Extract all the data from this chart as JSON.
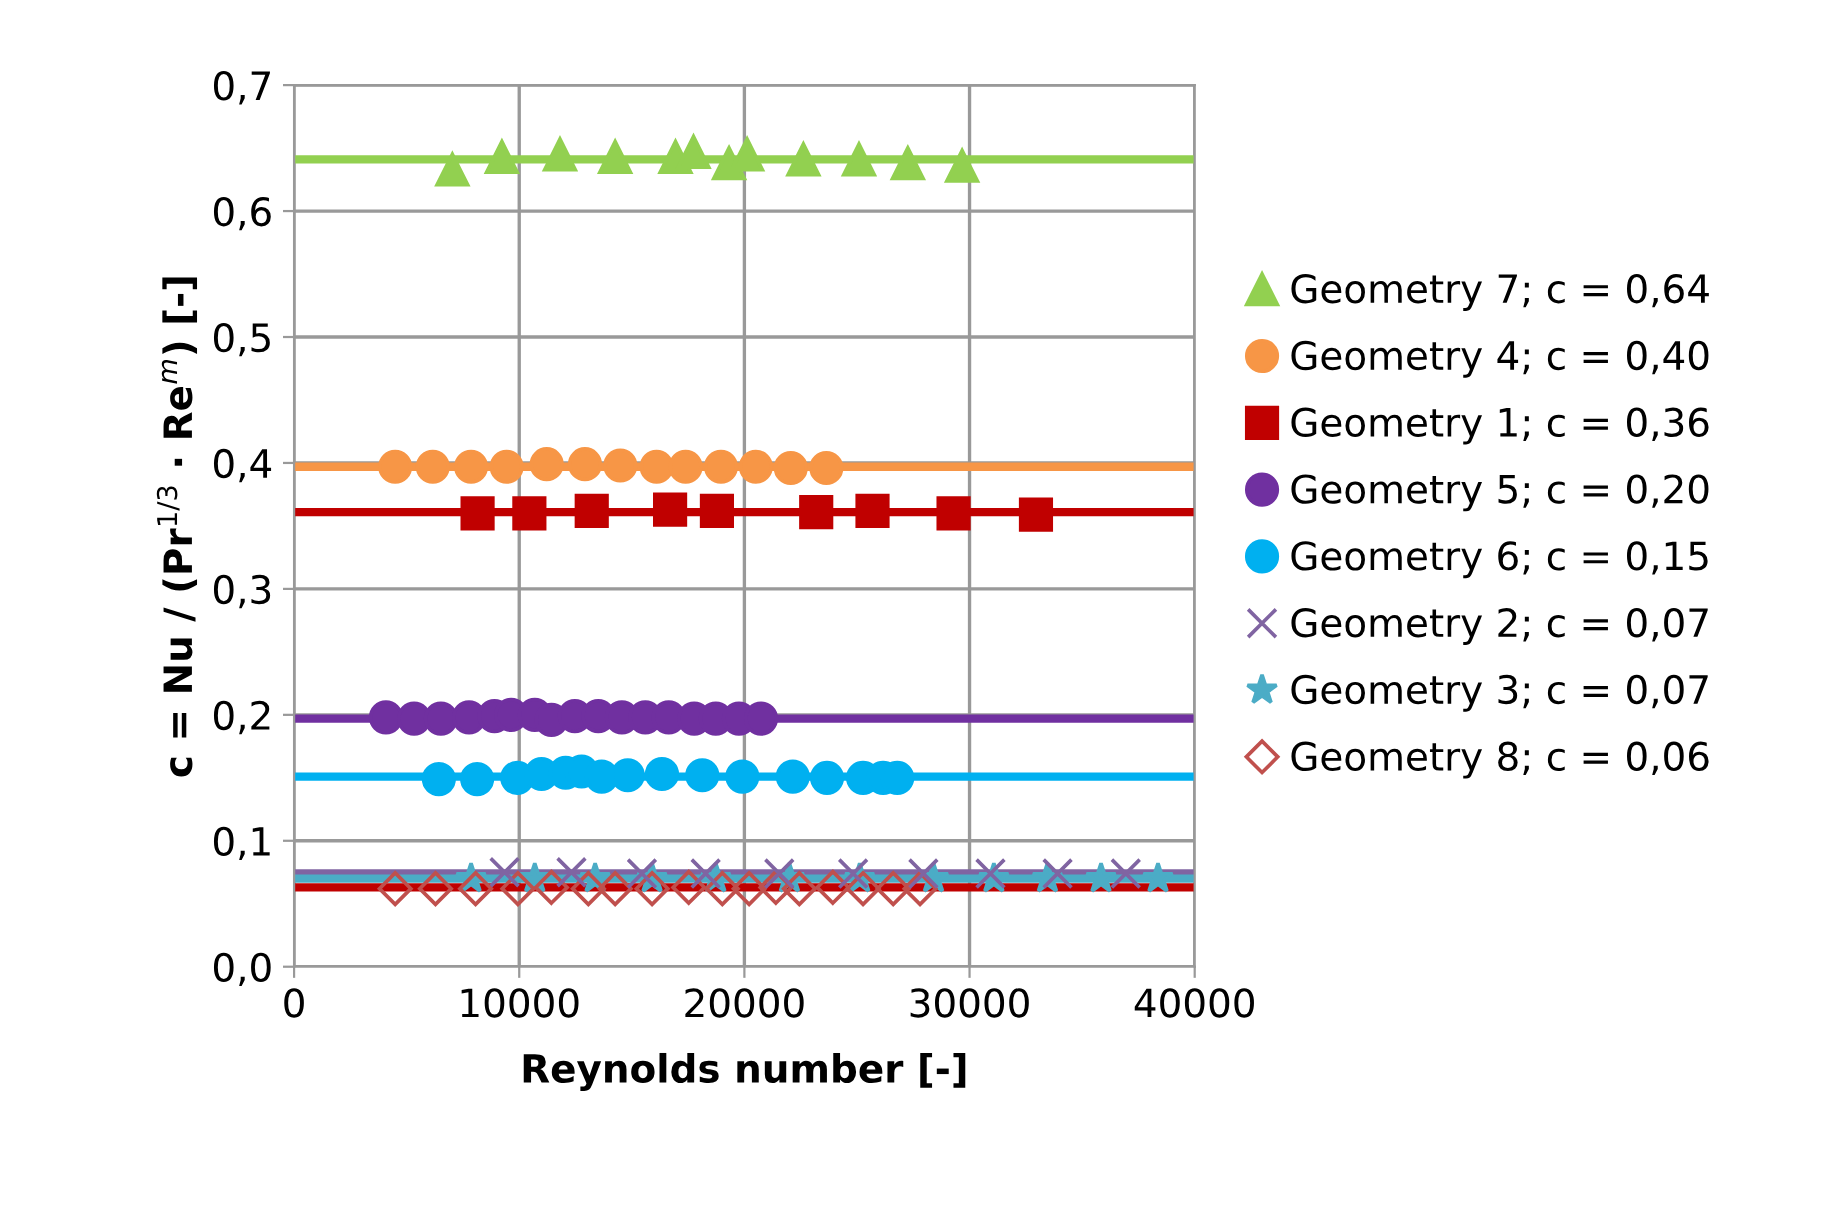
{
  "chart_data": {
    "type": "scatter",
    "xlabel": "Reynolds number [-]",
    "ylabel": "c = Nu / (Pr$^{1/3}$ · Re$^{m}$) [-]",
    "xlim": [
      0,
      40000
    ],
    "xticks": [
      0,
      10000,
      20000,
      30000,
      40000
    ],
    "ylim": [
      0,
      0.7
    ],
    "yticks": [
      {
        "value": 0,
        "label": "0,0"
      },
      {
        "value": 0.1,
        "label": "0,1"
      },
      {
        "value": 0.2,
        "label": "0,2"
      },
      {
        "value": 0.3,
        "label": "0,3"
      },
      {
        "value": 0.4,
        "label": "0,4"
      },
      {
        "value": 0.5,
        "label": "0,5"
      },
      {
        "value": 0.6,
        "label": "0,6"
      },
      {
        "value": 0.7,
        "label": "0,7"
      }
    ],
    "grid": true,
    "legend": "right",
    "series": [
      {
        "name": "Geometry 7; c = 0,64",
        "color": "#92d050",
        "marker": "triangle",
        "x": [
          7030,
          9230,
          11810,
          14260,
          16940,
          17740,
          19320,
          20120,
          22620,
          25090,
          27260,
          29670
        ],
        "values": [
          0.633,
          0.643,
          0.645,
          0.643,
          0.643,
          0.647,
          0.638,
          0.645,
          0.641,
          0.641,
          0.638,
          0.636
        ]
      },
      {
        "name": "Geometry 4; c = 0,40",
        "color": "#f79646",
        "marker": "circle",
        "x": [
          4490,
          6160,
          7860,
          9440,
          11220,
          12920,
          14490,
          16100,
          17390,
          18960,
          20510,
          22060,
          23640
        ],
        "values": [
          0.397,
          0.397,
          0.397,
          0.397,
          0.399,
          0.399,
          0.398,
          0.397,
          0.397,
          0.397,
          0.397,
          0.396,
          0.396
        ]
      },
      {
        "name": "Geometry 1; c = 0,36",
        "color": "#c00000",
        "marker": "square",
        "x": [
          8150,
          10450,
          13220,
          16700,
          18780,
          23190,
          25690,
          29290,
          32950
        ],
        "values": [
          0.36,
          0.36,
          0.362,
          0.363,
          0.362,
          0.361,
          0.362,
          0.36,
          0.359
        ]
      },
      {
        "name": "Geometry 5; c = 0,20",
        "color": "#7030a0",
        "marker": "circle",
        "x": [
          4080,
          5330,
          6520,
          7770,
          8900,
          9640,
          10690,
          11430,
          12470,
          13510,
          14560,
          15600,
          16640,
          17770,
          18730,
          19760,
          20740
        ],
        "values": [
          0.198,
          0.197,
          0.197,
          0.198,
          0.199,
          0.2,
          0.2,
          0.196,
          0.199,
          0.199,
          0.198,
          0.198,
          0.198,
          0.197,
          0.197,
          0.197,
          0.197
        ]
      },
      {
        "name": "Geometry 6; c = 0,15",
        "color": "#00b0f0",
        "marker": "circle",
        "x": [
          6430,
          8130,
          9910,
          10990,
          12060,
          12770,
          13660,
          14820,
          16340,
          18130,
          19910,
          22150,
          23670,
          25270,
          26160,
          26790
        ],
        "values": [
          0.149,
          0.149,
          0.15,
          0.153,
          0.154,
          0.155,
          0.151,
          0.152,
          0.153,
          0.152,
          0.151,
          0.151,
          0.15,
          0.15,
          0.15,
          0.15
        ]
      },
      {
        "name": "Geometry 2; c = 0,07",
        "color": "#8064a2",
        "marker": "cross",
        "x": [
          9350,
          12320,
          15450,
          18280,
          21550,
          24830,
          27950,
          30930,
          33910,
          36940
        ],
        "values": [
          0.075,
          0.075,
          0.074,
          0.074,
          0.074,
          0.074,
          0.074,
          0.074,
          0.074,
          0.074
        ]
      },
      {
        "name": "Geometry 3; c = 0,07",
        "color": "#4bacc6",
        "marker": "star",
        "x": [
          7860,
          10690,
          13370,
          15900,
          18730,
          22000,
          25120,
          28400,
          31080,
          33460,
          35840,
          38370
        ],
        "values": [
          0.07,
          0.07,
          0.07,
          0.07,
          0.07,
          0.07,
          0.07,
          0.07,
          0.07,
          0.07,
          0.07,
          0.07
        ]
      },
      {
        "name": "Geometry 8; c = 0,06",
        "color": "#c0504d",
        "marker": "diamond",
        "x": [
          4490,
          6280,
          8060,
          9940,
          11430,
          13070,
          14260,
          15900,
          17530,
          19020,
          20210,
          21400,
          22440,
          23930,
          25270,
          26610,
          27800
        ],
        "values": [
          0.062,
          0.062,
          0.062,
          0.062,
          0.063,
          0.062,
          0.062,
          0.062,
          0.063,
          0.062,
          0.062,
          0.063,
          0.062,
          0.063,
          0.062,
          0.062,
          0.062
        ]
      },
      {
        "type": "line",
        "color": "#92d050",
        "marker": "none",
        "x": [
          0,
          40000
        ],
        "values": [
          0.641,
          0.641
        ]
      },
      {
        "type": "line",
        "color": "#f79646",
        "marker": "none",
        "x": [
          0,
          40000
        ],
        "values": [
          0.397,
          0.397
        ]
      },
      {
        "type": "line",
        "color": "#c00000",
        "marker": "none",
        "x": [
          0,
          40000
        ],
        "values": [
          0.361,
          0.361
        ]
      },
      {
        "type": "line",
        "color": "#7030a0",
        "marker": "none",
        "x": [
          0,
          40000
        ],
        "values": [
          0.197,
          0.197
        ]
      },
      {
        "type": "line",
        "color": "#00b0f0",
        "marker": "none",
        "x": [
          0,
          40000
        ],
        "values": [
          0.151,
          0.151
        ]
      },
      {
        "type": "line",
        "color": "#8064a2",
        "marker": "none",
        "x": [
          0,
          40000
        ],
        "values": [
          0.074,
          0.074
        ]
      },
      {
        "type": "line",
        "color": "#4bacc6",
        "marker": "none",
        "x": [
          0,
          40000
        ],
        "values": [
          0.07,
          0.07
        ]
      },
      {
        "type": "line",
        "color": "#c00000",
        "marker": "none",
        "x": [
          0,
          40000
        ],
        "values": [
          0.063,
          0.063
        ]
      }
    ]
  }
}
